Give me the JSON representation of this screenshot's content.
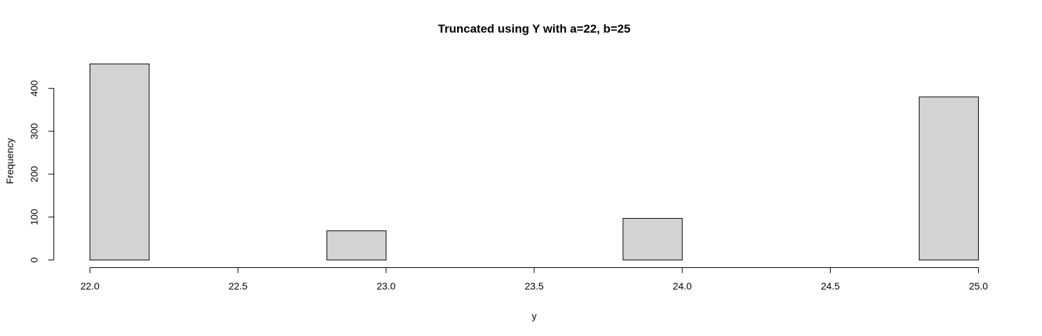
{
  "chart_data": {
    "type": "bar",
    "title": "Truncated using Y with a=22, b=25",
    "xlabel": "y",
    "ylabel": "Frequency",
    "xlim": [
      22.0,
      25.0
    ],
    "ylim": [
      0,
      460
    ],
    "x_ticks": [
      "22.0",
      "22.5",
      "23.0",
      "23.5",
      "24.0",
      "24.5",
      "25.0"
    ],
    "y_ticks": [
      "0",
      "100",
      "200",
      "300",
      "400"
    ],
    "bins": [
      {
        "start": 22.0,
        "end": 22.2,
        "count": 457
      },
      {
        "start": 22.2,
        "end": 22.4,
        "count": 0
      },
      {
        "start": 22.4,
        "end": 22.6,
        "count": 0
      },
      {
        "start": 22.6,
        "end": 22.8,
        "count": 0
      },
      {
        "start": 22.8,
        "end": 23.0,
        "count": 68
      },
      {
        "start": 23.0,
        "end": 23.2,
        "count": 0
      },
      {
        "start": 23.2,
        "end": 23.4,
        "count": 0
      },
      {
        "start": 23.4,
        "end": 23.6,
        "count": 0
      },
      {
        "start": 23.6,
        "end": 23.8,
        "count": 0
      },
      {
        "start": 23.8,
        "end": 24.0,
        "count": 97
      },
      {
        "start": 24.0,
        "end": 24.2,
        "count": 0
      },
      {
        "start": 24.2,
        "end": 24.4,
        "count": 0
      },
      {
        "start": 24.4,
        "end": 24.6,
        "count": 0
      },
      {
        "start": 24.6,
        "end": 24.8,
        "count": 0
      },
      {
        "start": 24.8,
        "end": 25.0,
        "count": 380
      }
    ],
    "bar_color": "#d3d3d3",
    "grid": false
  }
}
